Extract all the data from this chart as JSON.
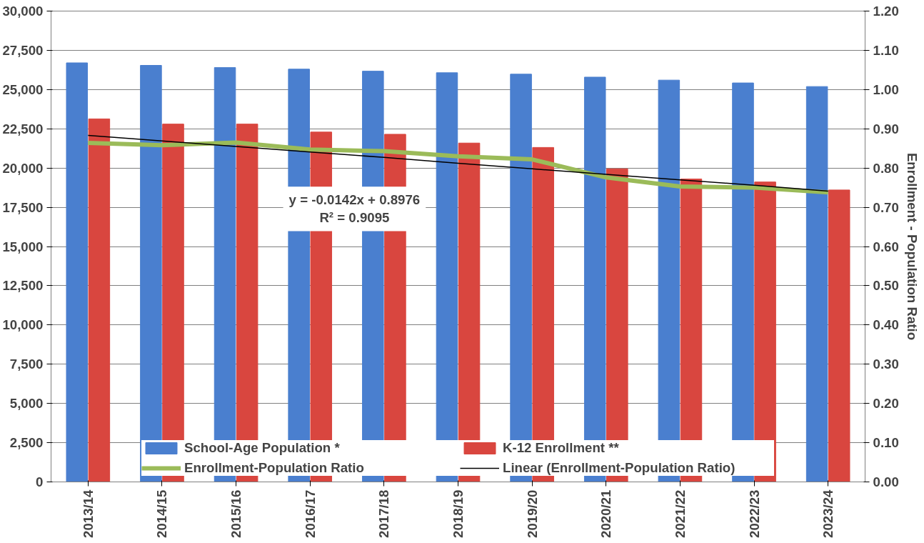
{
  "chart_data": {
    "type": "bar",
    "categories": [
      "2013/14",
      "2014/15",
      "2015/16",
      "2016/17",
      "2017/18",
      "2018/19",
      "2019/20",
      "2020/21",
      "2021/22",
      "2022/23",
      "2023/24"
    ],
    "series": [
      {
        "name": "School-Age Population *",
        "color": "#4a7fcf",
        "values": [
          26700,
          26540,
          26400,
          26300,
          26170,
          26070,
          25980,
          25790,
          25600,
          25420,
          25190
        ]
      },
      {
        "name": "K-12 Enrollment **",
        "color": "#d9463f",
        "values": [
          23130,
          22800,
          22800,
          22290,
          22150,
          21590,
          21310,
          19950,
          19300,
          19110,
          18600
        ]
      },
      {
        "name": "Enrollment-Population Ratio",
        "type": "line",
        "axis": "y2",
        "color": "#9bbb59",
        "values": [
          0.864,
          0.858,
          0.865,
          0.847,
          0.843,
          0.83,
          0.822,
          0.776,
          0.753,
          0.75,
          0.738
        ]
      },
      {
        "name": "Linear (Enrollment-Population Ratio)",
        "type": "line",
        "axis": "y2",
        "color": "#000000",
        "values": [
          0.883,
          0.869,
          0.855,
          0.841,
          0.827,
          0.812,
          0.798,
          0.784,
          0.77,
          0.756,
          0.741
        ]
      }
    ],
    "ylim": [
      0,
      30000
    ],
    "yticks": [
      0,
      {
        "value": 2500,
        "label": "2,500"
      },
      {
        "value": 5000,
        "label": "5,000"
      },
      {
        "value": 7500,
        "label": "7,500"
      },
      {
        "value": 10000,
        "label": "10,000"
      },
      {
        "value": 12500,
        "label": "12,500"
      },
      {
        "value": 15000,
        "label": "15,000"
      },
      {
        "value": 17500,
        "label": "17,500"
      },
      {
        "value": 20000,
        "label": "20,000"
      },
      {
        "value": 22500,
        "label": "22,500"
      },
      {
        "value": 25000,
        "label": "25,000"
      },
      {
        "value": 27500,
        "label": "27,500"
      },
      {
        "value": 30000,
        "label": "30,000"
      }
    ],
    "y2lim": [
      0,
      1.2
    ],
    "y2ticks": [
      {
        "value": 0,
        "label": "0.00"
      },
      {
        "value": 0.1,
        "label": "0.10"
      },
      {
        "value": 0.2,
        "label": "0.20"
      },
      {
        "value": 0.3,
        "label": "0.30"
      },
      {
        "value": 0.4,
        "label": "0.40"
      },
      {
        "value": 0.5,
        "label": "0.50"
      },
      {
        "value": 0.6,
        "label": "0.60"
      },
      {
        "value": 0.7,
        "label": "0.70"
      },
      {
        "value": 0.8,
        "label": "0.80"
      },
      {
        "value": 0.9,
        "label": "0.90"
      },
      {
        "value": 1.0,
        "label": "1.00"
      },
      {
        "value": 1.1,
        "label": "1.10"
      },
      {
        "value": 1.2,
        "label": "1.20"
      }
    ],
    "y2label": "Enrollment - Population Ratio",
    "annotations": [
      "y = -0.0142x + 0.8976",
      "R² = 0.9095"
    ],
    "grid": "y",
    "legend": "bottom"
  }
}
